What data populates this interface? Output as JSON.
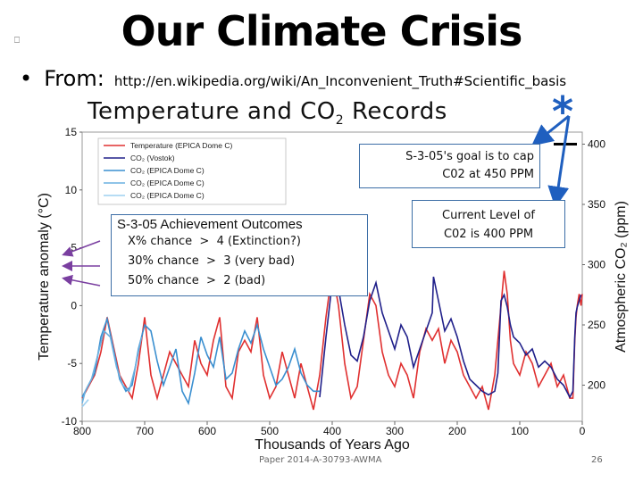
{
  "slide": {
    "title": "Our Climate Crisis",
    "corner_icon": "slide-icon",
    "bullet": "•",
    "from_label": "From:",
    "source_url": "http://en.wikipedia.org/wiki/An_Inconvenient_Truth#Scientific_basis",
    "asterisk": "*",
    "footer": "Paper 2014-A-30793-AWMA",
    "page_number": "26"
  },
  "annotations": {
    "goal_line1": "S-3-05's goal is to cap",
    "goal_line2": "C02 at 450 PPM",
    "current_line1": "Current Level of",
    "current_line2": "C02 is 400 PPM",
    "outcomes_title": "S-3-05 Achievement Outcomes",
    "outcomes": [
      {
        "chance": "X% chance",
        "op": ">",
        "level": "4 (Extinction?)"
      },
      {
        "chance": "30% chance",
        "op": ">",
        "level": "3 (very bad)"
      },
      {
        "chance": "50% chance",
        "op": ">",
        "level": "2 (bad)"
      }
    ]
  },
  "chart_data": {
    "type": "line",
    "title": "Temperature and CO",
    "title_sub": "2",
    "title_tail": " Records",
    "xlabel": "Thousands of Years Ago",
    "ylabel_left": "Temperature anomaly (°C)",
    "ylabel_right": "Atmospheric CO₂ (ppm)",
    "xlim": [
      800,
      0
    ],
    "ylim_left": [
      -10,
      15
    ],
    "ylim_right": [
      170,
      410
    ],
    "x_ticks": [
      "800",
      "700",
      "600",
      "500",
      "400",
      "300",
      "200",
      "100",
      "0"
    ],
    "y_ticks_left": [
      "15",
      "10",
      "5",
      "0",
      "-5",
      "-10"
    ],
    "y_ticks_right": [
      "400",
      "350",
      "300",
      "250",
      "200"
    ],
    "legend_placement": "top-left",
    "series": [
      {
        "name": "Temperature (EPICA Dome C)",
        "axis": "left",
        "color": "#e03030",
        "x": [
          800,
          780,
          770,
          760,
          740,
          720,
          710,
          700,
          690,
          680,
          660,
          640,
          630,
          620,
          610,
          600,
          590,
          580,
          570,
          560,
          550,
          540,
          530,
          520,
          510,
          500,
          490,
          480,
          470,
          460,
          450,
          440,
          430,
          420,
          410,
          400,
          390,
          380,
          370,
          360,
          350,
          340,
          330,
          320,
          310,
          300,
          290,
          280,
          270,
          260,
          250,
          240,
          230,
          220,
          210,
          200,
          190,
          180,
          170,
          160,
          150,
          140,
          130,
          125,
          120,
          115,
          110,
          100,
          90,
          80,
          70,
          60,
          50,
          40,
          30,
          20,
          15,
          12,
          10,
          8,
          5,
          2,
          0
        ],
        "y": [
          -8,
          -6,
          -4,
          -1,
          -6,
          -8,
          -5,
          -1,
          -6,
          -8,
          -4,
          -6,
          -7,
          -3,
          -5,
          -6,
          -3,
          -1,
          -7,
          -8,
          -4,
          -3,
          -4,
          -1,
          -6,
          -8,
          -7,
          -4,
          -6,
          -8,
          -5,
          -7,
          -9,
          -6,
          -1,
          3,
          0,
          -5,
          -8,
          -7,
          -3,
          1,
          0,
          -4,
          -6,
          -7,
          -5,
          -6,
          -8,
          -4,
          -2,
          -3,
          -2,
          -5,
          -3,
          -4,
          -6,
          -7,
          -8,
          -7,
          -9,
          -6,
          0,
          3,
          1,
          -3,
          -5,
          -6,
          -4,
          -5,
          -7,
          -6,
          -5,
          -7,
          -6,
          -8,
          -8,
          -3,
          -1,
          0,
          1,
          0,
          1
        ]
      },
      {
        "name": "CO₂ (Vostok)",
        "axis": "right",
        "color": "#20208a",
        "x": [
          420,
          410,
          400,
          390,
          380,
          370,
          360,
          350,
          340,
          330,
          320,
          310,
          300,
          290,
          280,
          270,
          260,
          250,
          240,
          238,
          230,
          220,
          210,
          200,
          190,
          180,
          170,
          160,
          150,
          140,
          135,
          130,
          125,
          120,
          115,
          110,
          100,
          90,
          80,
          70,
          60,
          50,
          40,
          30,
          20,
          15,
          12,
          10,
          8,
          5,
          2
        ],
        "y": [
          190,
          240,
          285,
          280,
          250,
          225,
          220,
          240,
          270,
          285,
          260,
          245,
          230,
          250,
          240,
          215,
          230,
          245,
          260,
          290,
          270,
          245,
          255,
          240,
          220,
          205,
          200,
          195,
          192,
          195,
          210,
          270,
          275,
          265,
          250,
          240,
          235,
          225,
          230,
          215,
          220,
          215,
          205,
          200,
          190,
          195,
          240,
          260,
          265,
          270,
          275
        ]
      },
      {
        "name": "CO₂ (EPICA Dome C)",
        "axis": "right",
        "color": "#3a8fd0",
        "x": [
          800,
          790,
          780,
          770,
          760,
          750,
          740,
          730,
          720,
          710,
          700,
          690,
          680,
          670,
          660,
          650,
          640,
          630,
          620,
          610,
          600,
          590,
          580,
          570,
          560,
          550,
          540,
          530,
          520,
          510,
          500,
          490,
          480,
          470,
          460,
          450,
          440,
          430,
          420
        ],
        "y": [
          190,
          200,
          210,
          240,
          255,
          230,
          205,
          195,
          200,
          230,
          250,
          245,
          220,
          200,
          215,
          230,
          195,
          185,
          210,
          240,
          225,
          215,
          240,
          205,
          210,
          230,
          245,
          235,
          250,
          230,
          215,
          200,
          205,
          215,
          230,
          210,
          200,
          195,
          195
        ]
      },
      {
        "name": "CO₂ (EPICA Dome C)",
        "axis": "right",
        "color": "#6ab0e0",
        "x": [
          800,
          795,
          785,
          775,
          765,
          755,
          745,
          735,
          725,
          715,
          705
        ],
        "y": [
          185,
          195,
          205,
          225,
          245,
          240,
          215,
          200,
          195,
          215,
          240
        ]
      },
      {
        "name": "CO₂ (EPICA Dome C)",
        "axis": "right",
        "color": "#9ed0f0",
        "x": [
          800,
          790
        ],
        "y": [
          182,
          188
        ]
      }
    ],
    "markers": [
      {
        "axis": "right",
        "y": 400,
        "color": "#000"
      }
    ]
  }
}
